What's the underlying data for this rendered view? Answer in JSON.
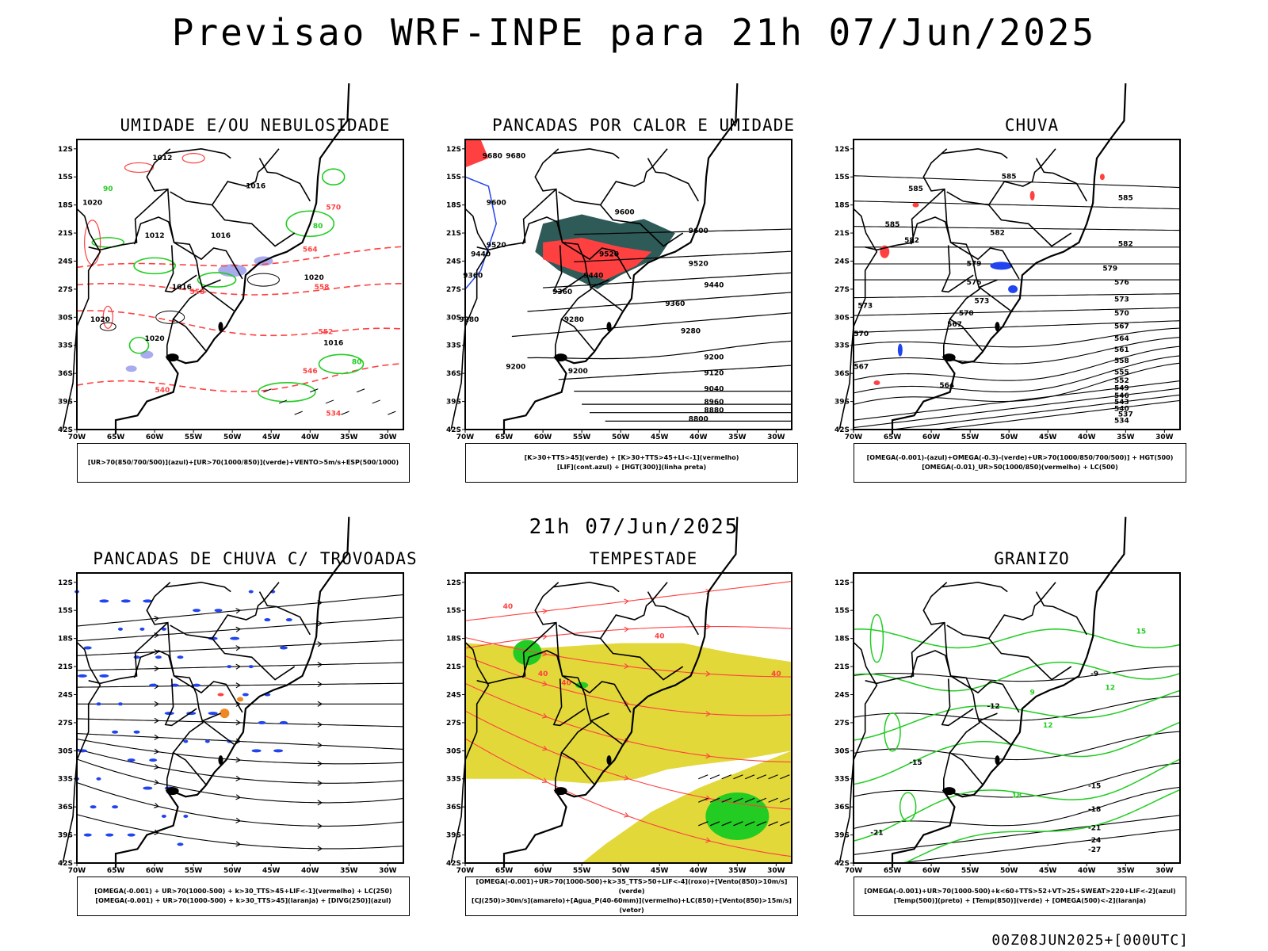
{
  "title": "Previsao WRF-INPE  para 21h 07/Jun/2025",
  "mid_title": "21h 07/Jun/2025",
  "footer": "00Z08JUN2025+[000UTC]",
  "lat_ticks": [
    "12S",
    "15S",
    "18S",
    "21S",
    "24S",
    "27S",
    "30S",
    "33S",
    "36S",
    "39S",
    "42S"
  ],
  "lon_ticks": [
    "70W",
    "65W",
    "60W",
    "55W",
    "50W",
    "45W",
    "40W",
    "35W",
    "30W"
  ],
  "colors": {
    "green": "#22cc22",
    "red": "#ff4040",
    "blue": "#2244ee",
    "lavender": "#aaaaee",
    "yellow": "#e2d83a",
    "darkgreen": "#2e5a58",
    "orange": "#ee8822",
    "black": "#000000"
  },
  "panels": [
    {
      "id": "umidade",
      "title": "UMIDADE E/OU NEBULOSIDADE",
      "legend": [
        "[UR>70(850/700/500)](azul)+[UR>70(1000/850)](verde)+VENTO>5m/s+ESP(500/1000)"
      ],
      "labels": [
        {
          "text": "1012",
          "lon": -59,
          "lat": -13.2,
          "c": "black"
        },
        {
          "text": "1016",
          "lon": -47,
          "lat": -16.2,
          "c": "black"
        },
        {
          "text": "1020",
          "lon": -68,
          "lat": -18,
          "c": "black"
        },
        {
          "text": "1012",
          "lon": -60,
          "lat": -21.5,
          "c": "black"
        },
        {
          "text": "1016",
          "lon": -51.5,
          "lat": -21.5,
          "c": "black"
        },
        {
          "text": "1020",
          "lon": -39.5,
          "lat": -26,
          "c": "black"
        },
        {
          "text": "1016",
          "lon": -56.5,
          "lat": -27,
          "c": "black"
        },
        {
          "text": "1020",
          "lon": -67,
          "lat": -30.5,
          "c": "black"
        },
        {
          "text": "1020",
          "lon": -60,
          "lat": -32.5,
          "c": "black"
        },
        {
          "text": "1016",
          "lon": -37,
          "lat": -33,
          "c": "black"
        },
        {
          "text": "570",
          "lon": -37,
          "lat": -18.5,
          "c": "red"
        },
        {
          "text": "564",
          "lon": -40,
          "lat": -23,
          "c": "red"
        },
        {
          "text": "558",
          "lon": -54.5,
          "lat": -27.5,
          "c": "red"
        },
        {
          "text": "558",
          "lon": -38.5,
          "lat": -27,
          "c": "red"
        },
        {
          "text": "552",
          "lon": -38,
          "lat": -31.8,
          "c": "red"
        },
        {
          "text": "546",
          "lon": -40,
          "lat": -36,
          "c": "red"
        },
        {
          "text": "540",
          "lon": -59,
          "lat": -38,
          "c": "red"
        },
        {
          "text": "534",
          "lon": -37,
          "lat": -40.5,
          "c": "red"
        },
        {
          "text": "80",
          "lon": -39,
          "lat": -20.5,
          "c": "green"
        },
        {
          "text": "90",
          "lon": -66,
          "lat": -16.5,
          "c": "green"
        },
        {
          "text": "80",
          "lon": -34,
          "lat": -35,
          "c": "green"
        }
      ]
    },
    {
      "id": "pancadas_calor",
      "title": "PANCADAS POR CALOR E UMIDADE",
      "legend": [
        "[K>30+TTS>45](verde) + [K>30+TTS>45+LI<-1](vermelho)",
        "[LIF](cont.azul) + [HGT(300)](linha preta)"
      ],
      "labels": [
        {
          "text": "9680",
          "lon": -66.5,
          "lat": -13,
          "c": "black"
        },
        {
          "text": "9680",
          "lon": -63.5,
          "lat": -13,
          "c": "black"
        },
        {
          "text": "9600",
          "lon": -66,
          "lat": -18,
          "c": "black"
        },
        {
          "text": "9600",
          "lon": -49.5,
          "lat": -19,
          "c": "black"
        },
        {
          "text": "9600",
          "lon": -40,
          "lat": -21,
          "c": "black"
        },
        {
          "text": "9520",
          "lon": -66,
          "lat": -22.5,
          "c": "black"
        },
        {
          "text": "9520",
          "lon": -51.5,
          "lat": -23.5,
          "c": "black"
        },
        {
          "text": "9520",
          "lon": -40,
          "lat": -24.5,
          "c": "black"
        },
        {
          "text": "9440",
          "lon": -68,
          "lat": -23.5,
          "c": "black"
        },
        {
          "text": "9440",
          "lon": -53.5,
          "lat": -25.8,
          "c": "black"
        },
        {
          "text": "9440",
          "lon": -38,
          "lat": -26.8,
          "c": "black"
        },
        {
          "text": "9360",
          "lon": -69,
          "lat": -25.8,
          "c": "black"
        },
        {
          "text": "9360",
          "lon": -57.5,
          "lat": -27.5,
          "c": "black"
        },
        {
          "text": "9360",
          "lon": -43,
          "lat": -28.8,
          "c": "black"
        },
        {
          "text": "9280",
          "lon": -69.5,
          "lat": -30.5,
          "c": "black"
        },
        {
          "text": "9280",
          "lon": -56,
          "lat": -30.5,
          "c": "black"
        },
        {
          "text": "9280",
          "lon": -41,
          "lat": -31.7,
          "c": "black"
        },
        {
          "text": "9200",
          "lon": -63.5,
          "lat": -35.5,
          "c": "black"
        },
        {
          "text": "9200",
          "lon": -55.5,
          "lat": -36,
          "c": "black"
        },
        {
          "text": "9200",
          "lon": -38,
          "lat": -34.5,
          "c": "black"
        },
        {
          "text": "9120",
          "lon": -38,
          "lat": -36.2,
          "c": "black"
        },
        {
          "text": "9040",
          "lon": -38,
          "lat": -37.9,
          "c": "black"
        },
        {
          "text": "8960",
          "lon": -38,
          "lat": -39.3,
          "c": "black"
        },
        {
          "text": "8880",
          "lon": -38,
          "lat": -40.2,
          "c": "black"
        },
        {
          "text": "8800",
          "lon": -40,
          "lat": -41.1,
          "c": "black"
        }
      ]
    },
    {
      "id": "chuva",
      "title": "CHUVA",
      "legend": [
        "[OMEGA(-0.001)-(azul)+OMEGA(-0.3)-(verde)+UR>70(1000/850/700/500)] + HGT(500)",
        "[OMEGA(-0.01)_UR>50(1000/850)(vermelho) + LC(500)"
      ],
      "labels": [
        {
          "text": "585",
          "lon": -62,
          "lat": -16.5,
          "c": "black"
        },
        {
          "text": "585",
          "lon": -50,
          "lat": -15.2,
          "c": "black"
        },
        {
          "text": "585",
          "lon": -35,
          "lat": -17.5,
          "c": "black"
        },
        {
          "text": "585",
          "lon": -65,
          "lat": -20.3,
          "c": "black"
        },
        {
          "text": "582",
          "lon": -62.5,
          "lat": -22,
          "c": "black"
        },
        {
          "text": "582",
          "lon": -51.5,
          "lat": -21.2,
          "c": "black"
        },
        {
          "text": "582",
          "lon": -35,
          "lat": -22.4,
          "c": "black"
        },
        {
          "text": "579",
          "lon": -54.5,
          "lat": -24.5,
          "c": "black"
        },
        {
          "text": "579",
          "lon": -37,
          "lat": -25,
          "c": "black"
        },
        {
          "text": "576",
          "lon": -54.5,
          "lat": -26.5,
          "c": "black"
        },
        {
          "text": "576",
          "lon": -35.5,
          "lat": -26.5,
          "c": "black"
        },
        {
          "text": "573",
          "lon": -53.5,
          "lat": -28.5,
          "c": "black"
        },
        {
          "text": "573",
          "lon": -35.5,
          "lat": -28.3,
          "c": "black"
        },
        {
          "text": "570",
          "lon": -55.5,
          "lat": -29.8,
          "c": "black"
        },
        {
          "text": "570",
          "lon": -35.5,
          "lat": -29.8,
          "c": "black"
        },
        {
          "text": "567",
          "lon": -57,
          "lat": -31,
          "c": "black"
        },
        {
          "text": "567",
          "lon": -35.5,
          "lat": -31.2,
          "c": "black"
        },
        {
          "text": "564",
          "lon": -35.5,
          "lat": -32.5,
          "c": "black"
        },
        {
          "text": "561",
          "lon": -35.5,
          "lat": -33.7,
          "c": "black"
        },
        {
          "text": "558",
          "lon": -35.5,
          "lat": -34.9,
          "c": "black"
        },
        {
          "text": "555",
          "lon": -35.5,
          "lat": -36.1,
          "c": "black"
        },
        {
          "text": "552",
          "lon": -35.5,
          "lat": -37,
          "c": "black"
        },
        {
          "text": "549",
          "lon": -35.5,
          "lat": -37.8,
          "c": "black"
        },
        {
          "text": "546",
          "lon": -35.5,
          "lat": -38.6,
          "c": "black"
        },
        {
          "text": "543",
          "lon": -35.5,
          "lat": -39.3,
          "c": "black"
        },
        {
          "text": "540",
          "lon": -35.5,
          "lat": -40,
          "c": "black"
        },
        {
          "text": "537",
          "lon": -35,
          "lat": -40.6,
          "c": "black"
        },
        {
          "text": "534",
          "lon": -35.5,
          "lat": -41.3,
          "c": "black"
        },
        {
          "text": "564",
          "lon": -58,
          "lat": -37.5,
          "c": "black"
        },
        {
          "text": "573",
          "lon": -68.5,
          "lat": -29,
          "c": "black"
        },
        {
          "text": "570",
          "lon": -69,
          "lat": -32,
          "c": "black"
        },
        {
          "text": "567",
          "lon": -69,
          "lat": -35.5,
          "c": "black"
        }
      ]
    },
    {
      "id": "trovoadas",
      "title": "PANCADAS DE CHUVA C/ TROVOADAS",
      "legend": [
        "[OMEGA(-0.001) + UR>70(1000-500) + k>30_TTS>45+LIF<-1](vermelho) + LC(250)",
        "[OMEGA(-0.001) + UR>70(1000-500) + k>30_TTS>45](laranja) + [DIVG(250)](azul)"
      ],
      "labels": []
    },
    {
      "id": "tempestade",
      "title": "TEMPESTADE",
      "legend": [
        "[OMEGA(-0.001)+UR>70(1000-500)+k>35_TTS>50+LIF<-4](roxo)+[Vento(850)>10m/s](verde)",
        "[CJ(250)>30m/s](amarelo)+[Agua_P(40-60mm)](vermelho)+LC(850)+[Vento(850)>15m/s](vetor)"
      ],
      "labels": [
        {
          "text": "40",
          "lon": -64.5,
          "lat": -14.8,
          "c": "red"
        },
        {
          "text": "40",
          "lon": -45,
          "lat": -18,
          "c": "red"
        },
        {
          "text": "40",
          "lon": -60,
          "lat": -22,
          "c": "red"
        },
        {
          "text": "40",
          "lon": -30,
          "lat": -22,
          "c": "red"
        },
        {
          "text": "40",
          "lon": -57,
          "lat": -23,
          "c": "red"
        }
      ]
    },
    {
      "id": "granizo",
      "title": "GRANIZO",
      "legend": [
        "[OMEGA(-0.001)+UR>70(1000-500)+k<60+TTS>52+VT>25+SWEAT>220+LIF<-2](azul)",
        "[Temp(500)](preto) + [Temp(850)](verde) + [OMEGA(500)<-2](laranja)"
      ],
      "labels": [
        {
          "text": "15",
          "lon": -33,
          "lat": -17.5,
          "c": "green"
        },
        {
          "text": "-9",
          "lon": -39,
          "lat": -22,
          "c": "black"
        },
        {
          "text": "-12",
          "lon": -52,
          "lat": -25.5,
          "c": "black"
        },
        {
          "text": "12",
          "lon": -37,
          "lat": -23.5,
          "c": "green"
        },
        {
          "text": "9",
          "lon": -47,
          "lat": -24,
          "c": "green"
        },
        {
          "text": "12",
          "lon": -45,
          "lat": -27.5,
          "c": "green"
        },
        {
          "text": "-15",
          "lon": -39,
          "lat": -34,
          "c": "black"
        },
        {
          "text": "-18",
          "lon": -39,
          "lat": -36.5,
          "c": "black"
        },
        {
          "text": "-21",
          "lon": -39,
          "lat": -38.5,
          "c": "black"
        },
        {
          "text": "-24",
          "lon": -39,
          "lat": -39.8,
          "c": "black"
        },
        {
          "text": "-27",
          "lon": -39,
          "lat": -40.8,
          "c": "black"
        },
        {
          "text": "-21",
          "lon": -67,
          "lat": -39,
          "c": "black"
        },
        {
          "text": "18",
          "lon": -49,
          "lat": -35,
          "c": "green"
        },
        {
          "text": "-15",
          "lon": -62,
          "lat": -31.5,
          "c": "black"
        }
      ]
    }
  ]
}
